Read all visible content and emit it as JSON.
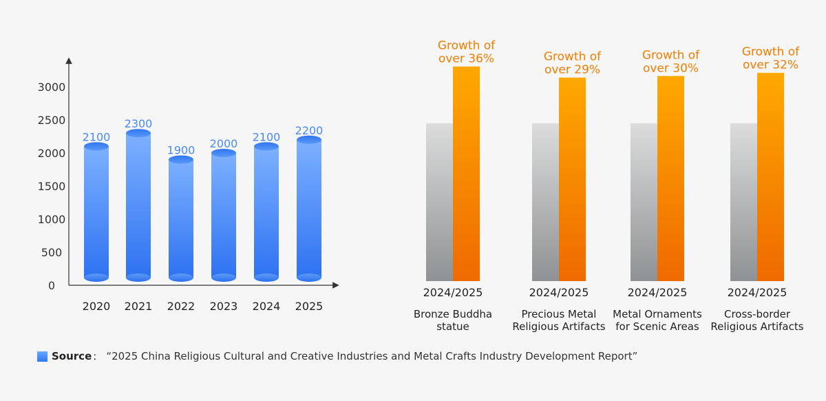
{
  "colors": {
    "background": "#f6f6f6",
    "blue_top": "#7db1ff",
    "blue_bottom": "#2e72f2",
    "blue_label": "#4a8af4",
    "gray_top": "#dcdcdc",
    "gray_bottom": "#8f9294",
    "orange_top": "#ffa800",
    "orange_bottom": "#ef6a00",
    "orange_label": "#f07d00",
    "axis": "#333333"
  },
  "chart_data": [
    {
      "type": "bar",
      "style": "cylinder",
      "categories": [
        "2020",
        "2021",
        "2022",
        "2023",
        "2024",
        "2025"
      ],
      "values": [
        2100,
        2300,
        1900,
        2000,
        2100,
        2200
      ],
      "data_labels": [
        "2100",
        "2300",
        "1900",
        "2000",
        "2100",
        "2200"
      ],
      "yticks": [
        "0",
        "500",
        "1000",
        "1500",
        "2000",
        "2500",
        "3000"
      ],
      "ylim": [
        0,
        3000
      ],
      "title": "",
      "xlabel": "",
      "ylabel": "",
      "grid": false
    },
    {
      "type": "bar",
      "style": "paired-comparison",
      "categories": [
        {
          "period": "2024/2025",
          "name": "Bronze Buddha statue",
          "name_lines": [
            "Bronze Buddha",
            "statue"
          ]
        },
        {
          "period": "2024/2025",
          "name": "Precious Metal Religious Artifacts",
          "name_lines": [
            "Precious Metal",
            "Religious Artifacts"
          ]
        },
        {
          "period": "2024/2025",
          "name": "Metal Ornaments for Scenic Areas",
          "name_lines": [
            "Metal Ornaments",
            "for Scenic Areas"
          ]
        },
        {
          "period": "2024/2025",
          "name": "Cross-border Religious Artifacts",
          "name_lines": [
            "Cross-border",
            "Religious Artifacts"
          ]
        }
      ],
      "series": [
        {
          "values": [
            1,
            1,
            1,
            1
          ]
        },
        {
          "values": [
            1.36,
            1.29,
            1.3,
            1.32
          ]
        }
      ],
      "annotations": [
        [
          "Growth of",
          "over 36%"
        ],
        [
          "Growth of",
          "over 29%"
        ],
        [
          "Growth of",
          "over 30%"
        ],
        [
          "Growth of",
          "over 32%"
        ]
      ],
      "title": "",
      "xlabel": "",
      "ylabel": "",
      "grid": false
    }
  ],
  "source": {
    "label": "Source",
    "separator": ":",
    "text": "“2025 China Religious Cultural and Creative Industries and Metal Crafts Industry Development Report”"
  }
}
